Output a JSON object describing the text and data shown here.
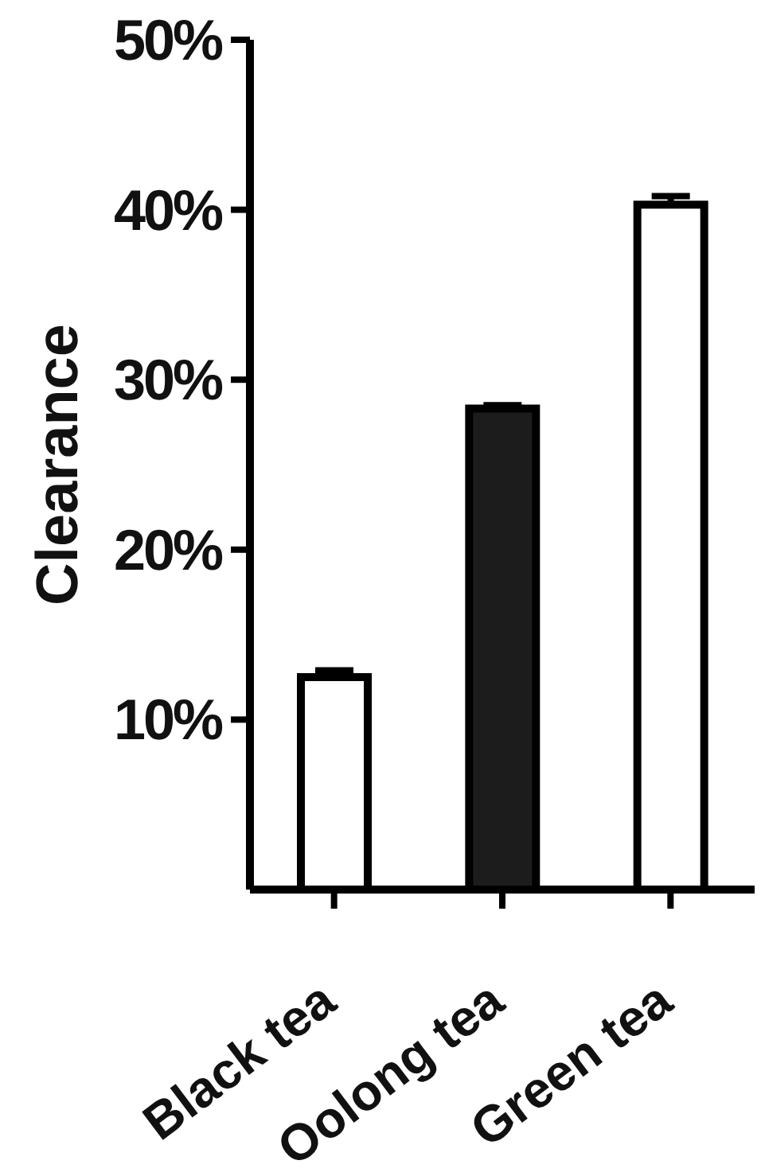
{
  "chart_data": {
    "type": "bar",
    "ylabel": "Clearance",
    "categories": [
      "Black tea",
      "Oolong tea",
      "Green tea"
    ],
    "values": [
      12.5,
      28.3,
      40.3
    ],
    "colors": [
      "#ffffff",
      "#1c1c1c",
      "#ffffff"
    ],
    "errors": [
      [
        12.5,
        12.9
      ],
      [
        28.3,
        28.5
      ],
      [
        40.3,
        40.8
      ]
    ],
    "ylim": [
      0,
      50
    ],
    "yticks": [
      {
        "value": 10,
        "label": "10%"
      },
      {
        "value": 20,
        "label": "20%"
      },
      {
        "value": 30,
        "label": "30%"
      },
      {
        "value": 40,
        "label": "40%"
      },
      {
        "value": 50,
        "label": "50%"
      }
    ]
  }
}
